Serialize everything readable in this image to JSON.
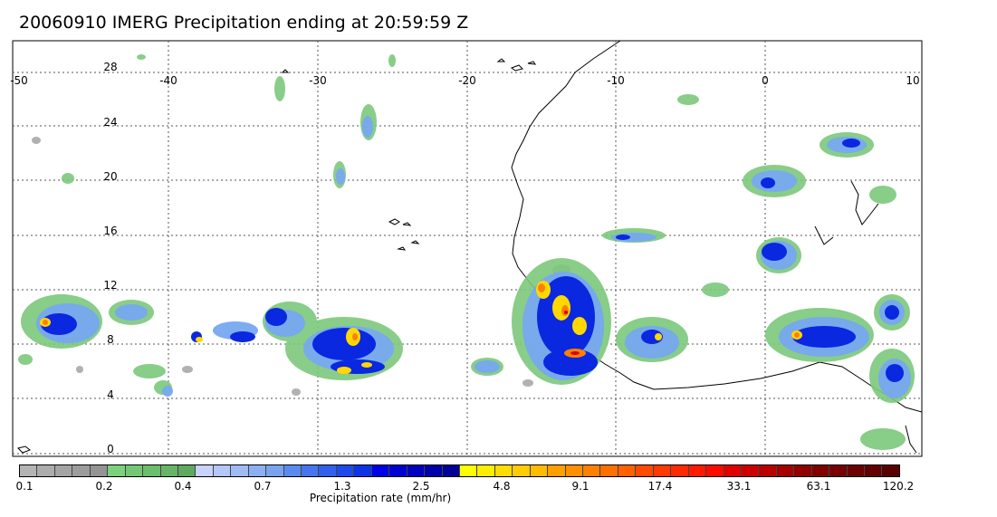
{
  "title": "20060910 IMERG Precipitation ending at 20:59:59 Z",
  "map": {
    "longitude_labels": [
      "-50",
      "-40",
      "-30",
      "-20",
      "-10",
      "0",
      "10"
    ],
    "latitude_labels": [
      "28",
      "24",
      "20",
      "16",
      "12",
      "8",
      "4",
      "0"
    ]
  },
  "colorbar": {
    "title": "Precipitation rate (mm/hr)",
    "tick_labels": [
      "0.1",
      "0.2",
      "0.4",
      "0.7",
      "1.3",
      "2.5",
      "4.8",
      "9.1",
      "17.4",
      "33.1",
      "63.1",
      "120.2"
    ],
    "colors": [
      "#b4b4b4",
      "#acacac",
      "#a4a4a4",
      "#9c9c9c",
      "#949494",
      "#7cd27c",
      "#74c874",
      "#6cbe6c",
      "#66b466",
      "#5eaa5e",
      "#c8d2ff",
      "#b4c6fa",
      "#a0baf6",
      "#8cb0f2",
      "#78a4ee",
      "#5a8cf0",
      "#4676ee",
      "#3260ec",
      "#1e4aea",
      "#0a34e6",
      "#0000e6",
      "#0000d2",
      "#0000be",
      "#0000aa",
      "#000096",
      "#ffff00",
      "#ffee00",
      "#ffdd00",
      "#ffcc00",
      "#ffbb00",
      "#ffa000",
      "#ff9000",
      "#ff8000",
      "#ff7000",
      "#ff6000",
      "#ff4a00",
      "#ff3a00",
      "#ff2a00",
      "#ff1a00",
      "#ff0a00",
      "#e00000",
      "#cc0000",
      "#b80000",
      "#a40000",
      "#900000",
      "#800000",
      "#760000",
      "#6c0000",
      "#620000",
      "#580000"
    ]
  }
}
